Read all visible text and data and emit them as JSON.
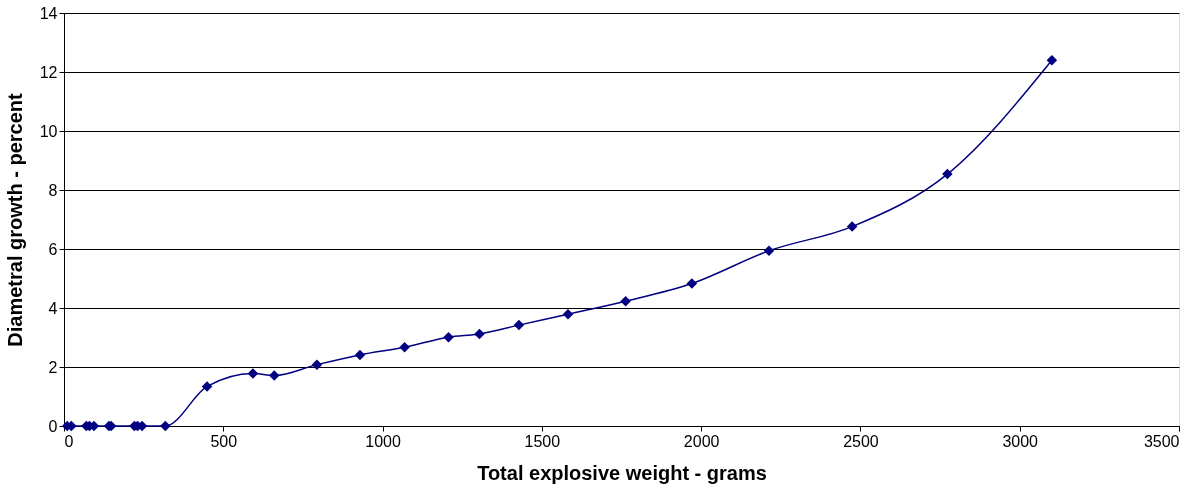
{
  "chart_data": {
    "type": "line",
    "xlabel": "Total explosive weight - grams",
    "ylabel": "Diametral growth - percent",
    "x": [
      10,
      23,
      70,
      80,
      94,
      141,
      148,
      221,
      231,
      245,
      318,
      449,
      593,
      660,
      794,
      929,
      1069,
      1207,
      1304,
      1428,
      1582,
      1763,
      1971,
      2213,
      2474,
      2773,
      3101
    ],
    "series": [
      {
        "color": "#000080",
        "values": [
          0,
          0,
          0,
          0,
          0,
          0,
          0,
          0,
          0,
          0,
          0,
          1.34,
          1.78,
          1.71,
          2.08,
          2.41,
          2.67,
          3.01,
          3.12,
          3.42,
          3.79,
          4.23,
          4.83,
          5.94,
          6.76,
          8.54,
          12.4
        ]
      }
    ],
    "xlim": [
      0,
      3500
    ],
    "xticks": [
      0,
      500,
      1000,
      1500,
      2000,
      2500,
      3000,
      3500
    ],
    "ylim": [
      0,
      14
    ],
    "yticks": [
      0,
      2,
      4,
      6,
      8,
      10,
      12,
      14
    ],
    "grid": "y",
    "marker": "diamond",
    "line_style": "solid"
  }
}
